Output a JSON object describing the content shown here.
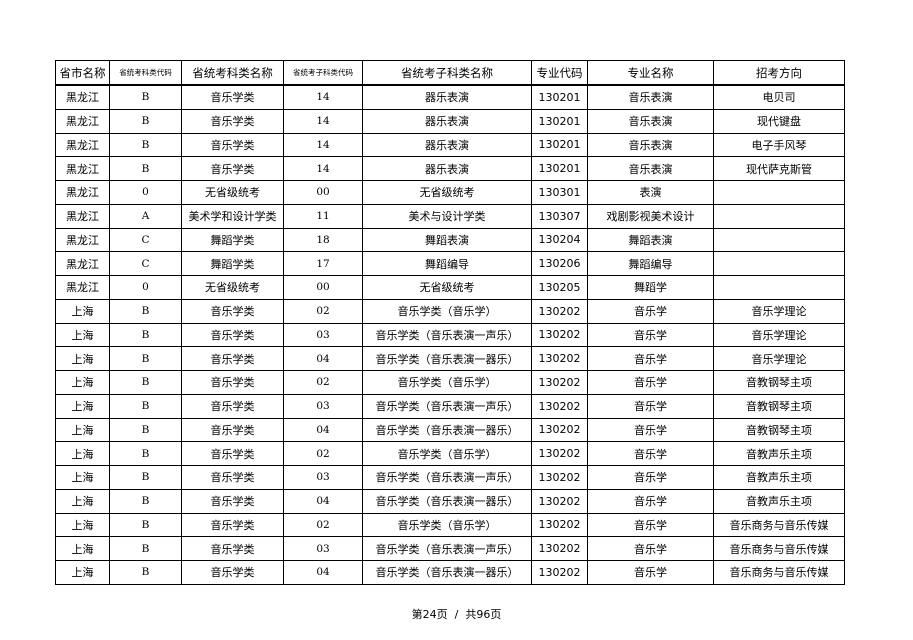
{
  "table": {
    "headers": [
      "省市名称",
      "省统考科类代码",
      "省统考科类名称",
      "省统考子科类代码",
      "省统考子科类名称",
      "专业代码",
      "专业名称",
      "招考方向"
    ],
    "rows": [
      [
        "黑龙江",
        "B",
        "音乐学类",
        "14",
        "器乐表演",
        "130201",
        "音乐表演",
        "电贝司"
      ],
      [
        "黑龙江",
        "B",
        "音乐学类",
        "14",
        "器乐表演",
        "130201",
        "音乐表演",
        "现代键盘"
      ],
      [
        "黑龙江",
        "B",
        "音乐学类",
        "14",
        "器乐表演",
        "130201",
        "音乐表演",
        "电子手风琴"
      ],
      [
        "黑龙江",
        "B",
        "音乐学类",
        "14",
        "器乐表演",
        "130201",
        "音乐表演",
        "现代萨克斯管"
      ],
      [
        "黑龙江",
        "0",
        "无省级统考",
        "00",
        "无省级统考",
        "130301",
        "表演",
        ""
      ],
      [
        "黑龙江",
        "A",
        "美术学和设计学类",
        "11",
        "美术与设计学类",
        "130307",
        "戏剧影视美术设计",
        ""
      ],
      [
        "黑龙江",
        "C",
        "舞蹈学类",
        "18",
        "舞蹈表演",
        "130204",
        "舞蹈表演",
        ""
      ],
      [
        "黑龙江",
        "C",
        "舞蹈学类",
        "17",
        "舞蹈编导",
        "130206",
        "舞蹈编导",
        ""
      ],
      [
        "黑龙江",
        "0",
        "无省级统考",
        "00",
        "无省级统考",
        "130205",
        "舞蹈学",
        ""
      ],
      [
        "上海",
        "B",
        "音乐学类",
        "02",
        "音乐学类（音乐学）",
        "130202",
        "音乐学",
        "音乐学理论"
      ],
      [
        "上海",
        "B",
        "音乐学类",
        "03",
        "音乐学类（音乐表演一声乐）",
        "130202",
        "音乐学",
        "音乐学理论"
      ],
      [
        "上海",
        "B",
        "音乐学类",
        "04",
        "音乐学类（音乐表演一器乐）",
        "130202",
        "音乐学",
        "音乐学理论"
      ],
      [
        "上海",
        "B",
        "音乐学类",
        "02",
        "音乐学类（音乐学）",
        "130202",
        "音乐学",
        "音教钢琴主项"
      ],
      [
        "上海",
        "B",
        "音乐学类",
        "03",
        "音乐学类（音乐表演一声乐）",
        "130202",
        "音乐学",
        "音教钢琴主项"
      ],
      [
        "上海",
        "B",
        "音乐学类",
        "04",
        "音乐学类（音乐表演一器乐）",
        "130202",
        "音乐学",
        "音教钢琴主项"
      ],
      [
        "上海",
        "B",
        "音乐学类",
        "02",
        "音乐学类（音乐学）",
        "130202",
        "音乐学",
        "音教声乐主项"
      ],
      [
        "上海",
        "B",
        "音乐学类",
        "03",
        "音乐学类（音乐表演一声乐）",
        "130202",
        "音乐学",
        "音教声乐主项"
      ],
      [
        "上海",
        "B",
        "音乐学类",
        "04",
        "音乐学类（音乐表演一器乐）",
        "130202",
        "音乐学",
        "音教声乐主项"
      ],
      [
        "上海",
        "B",
        "音乐学类",
        "02",
        "音乐学类（音乐学）",
        "130202",
        "音乐学",
        "音乐商务与音乐传媒"
      ],
      [
        "上海",
        "B",
        "音乐学类",
        "03",
        "音乐学类（音乐表演一声乐）",
        "130202",
        "音乐学",
        "音乐商务与音乐传媒"
      ],
      [
        "上海",
        "B",
        "音乐学类",
        "04",
        "音乐学类（音乐表演一器乐）",
        "130202",
        "音乐学",
        "音乐商务与音乐传媒"
      ]
    ]
  },
  "footer": {
    "page": "第24页",
    "sep": "/",
    "total": "共96页"
  }
}
